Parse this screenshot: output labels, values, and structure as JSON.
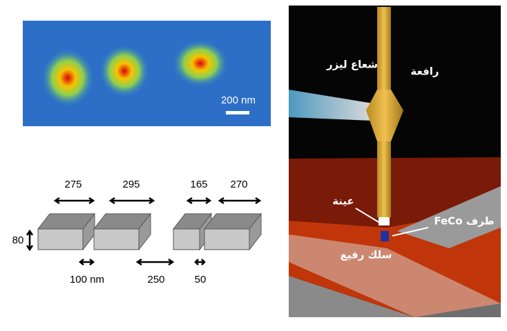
{
  "microscopy": {
    "scale_bar": "200 nm"
  },
  "diagram": {
    "widths": [
      "275",
      "295",
      "165",
      "270"
    ],
    "height": "80",
    "gaps": [
      "100 nm",
      "250",
      "50"
    ]
  },
  "setup": {
    "laser": "شعاع ليزر",
    "cantilever": "رافعة",
    "sample": "عينة",
    "tip": "طرف FeCo",
    "wire": "سلك رفيع"
  }
}
